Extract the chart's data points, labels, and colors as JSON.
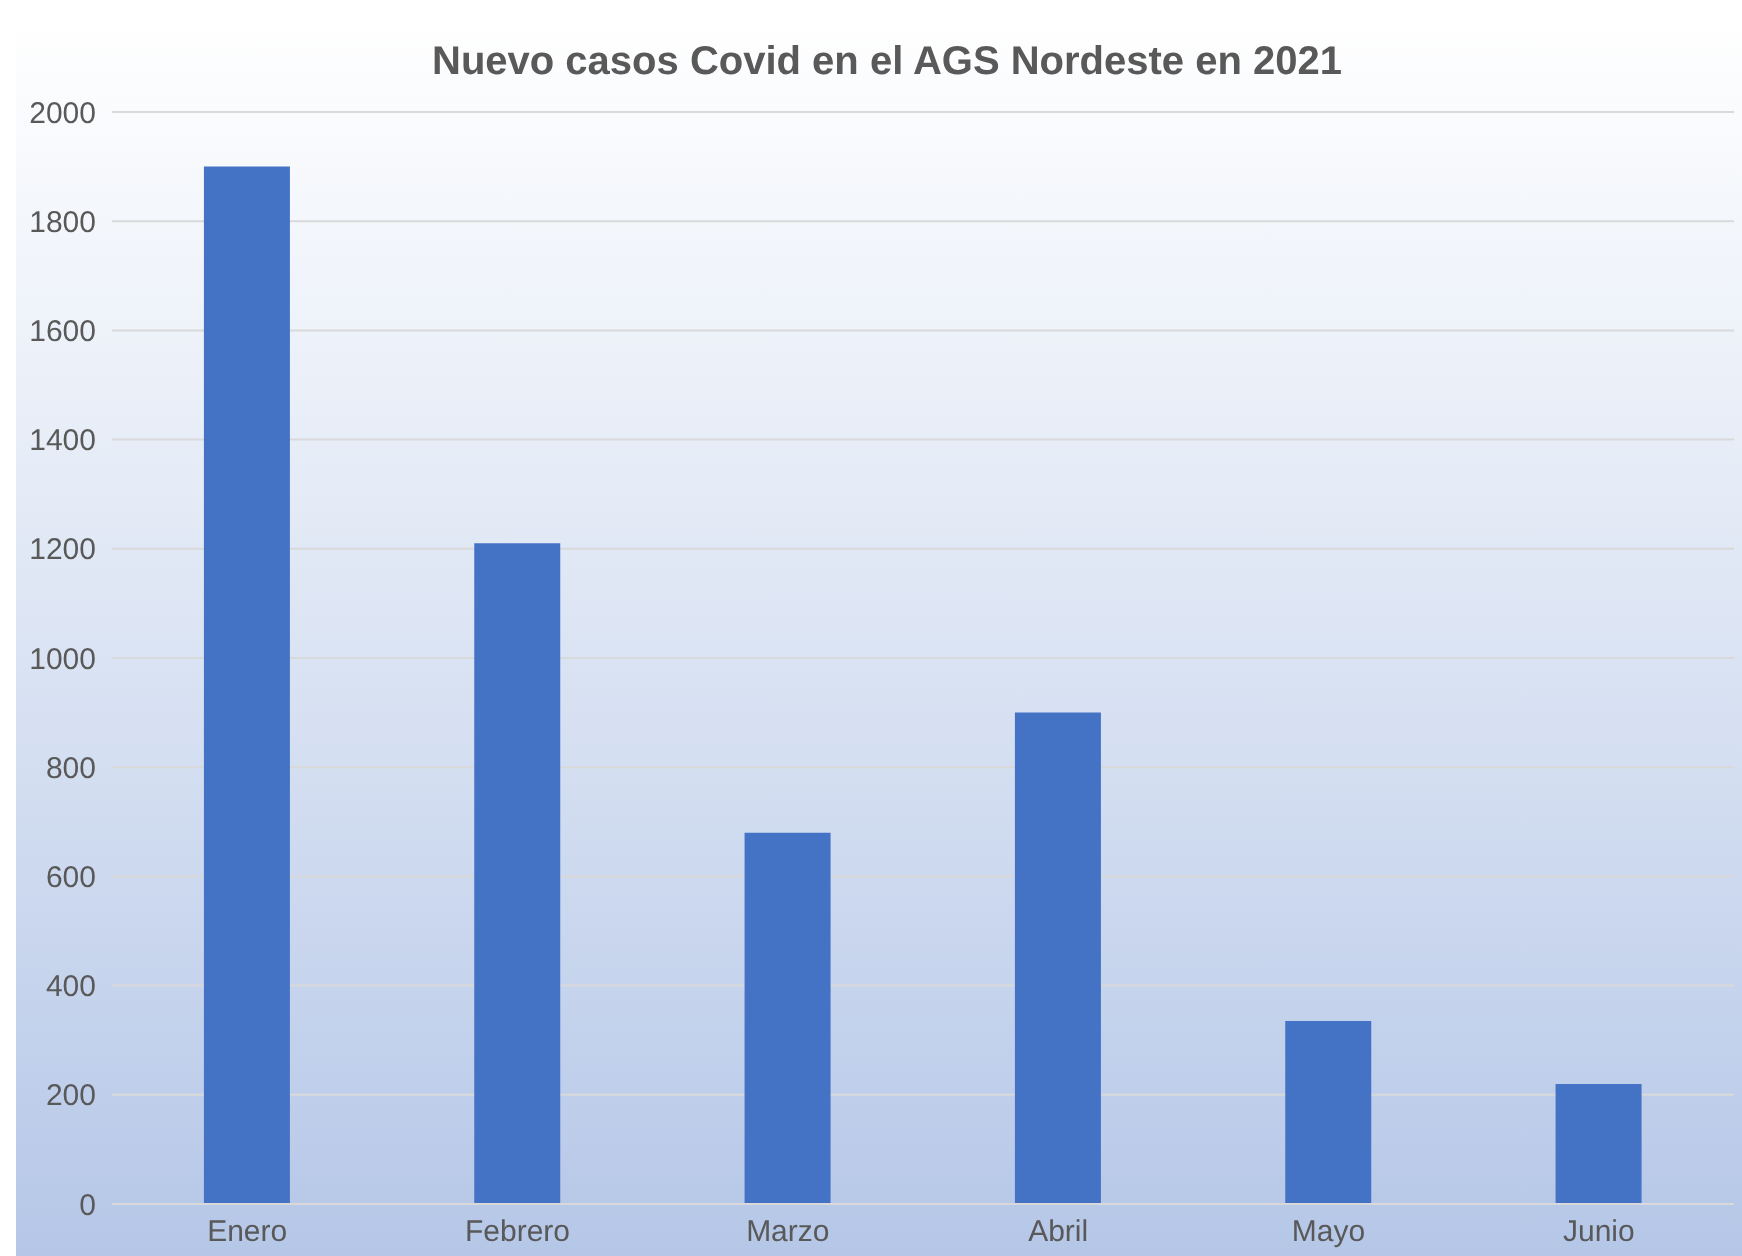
{
  "chart_data": {
    "type": "bar",
    "title": "Nuevo casos Covid en el AGS Nordeste en 2021",
    "categories": [
      "Enero",
      "Febrero",
      "Marzo",
      "Abril",
      "Mayo",
      "Junio"
    ],
    "values": [
      1900,
      1210,
      680,
      900,
      335,
      220
    ],
    "color": "#4472c4",
    "ylim": [
      0,
      2000
    ],
    "yticks": [
      0,
      200,
      400,
      600,
      800,
      1000,
      1200,
      1400,
      1600,
      1800,
      2000
    ],
    "grid": "y"
  }
}
